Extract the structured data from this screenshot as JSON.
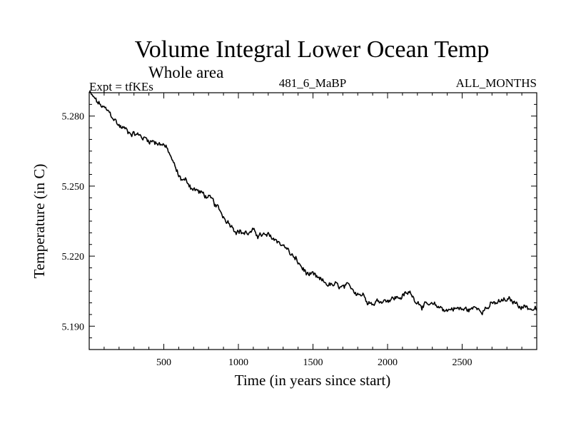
{
  "chart_data": {
    "type": "line",
    "title": "Volume Integral Lower Ocean Temp",
    "subtitle": "Whole area",
    "expt_label": "Expt = tfKEs",
    "center_label": "481_6_MaBP",
    "right_label": "ALL_MONTHS",
    "xlabel": "Time (in years since start)",
    "ylabel": "Temperature (in C)",
    "xlim": [
      0,
      3000
    ],
    "ylim": [
      5.18,
      5.29
    ],
    "x_ticks": [
      500,
      1000,
      1500,
      2000,
      2500
    ],
    "x_tick_labels": [
      "500",
      "1000",
      "1500",
      "2000",
      "2500"
    ],
    "y_ticks": [
      5.19,
      5.22,
      5.25,
      5.28
    ],
    "y_tick_labels": [
      "5.190",
      "5.220",
      "5.250",
      "5.280"
    ],
    "grid": false,
    "line_color": "#000000",
    "series": [
      {
        "x": [
          0,
          50,
          100,
          150,
          200,
          250,
          300,
          350,
          400,
          450,
          500,
          550,
          600,
          650,
          700,
          750,
          800,
          850,
          900,
          950,
          1000,
          1050,
          1100,
          1150,
          1200,
          1250,
          1300,
          1350,
          1400,
          1450,
          1500,
          1550,
          1600,
          1650,
          1700,
          1750,
          1800,
          1850,
          1900,
          1950,
          2000,
          2050,
          2100,
          2150,
          2200,
          2250,
          2300,
          2350,
          2400,
          2450,
          2500,
          2550,
          2600,
          2650,
          2700,
          2750,
          2800,
          2850,
          2900,
          2950,
          3000
        ],
        "y": [
          5.29,
          5.286,
          5.283,
          5.28,
          5.276,
          5.274,
          5.273,
          5.271,
          5.27,
          5.269,
          5.268,
          5.262,
          5.254,
          5.252,
          5.249,
          5.247,
          5.245,
          5.241,
          5.237,
          5.234,
          5.231,
          5.23,
          5.23,
          5.229,
          5.228,
          5.227,
          5.225,
          5.221,
          5.217,
          5.213,
          5.211,
          5.209,
          5.208,
          5.207,
          5.206,
          5.206,
          5.205,
          5.203,
          5.2,
          5.201,
          5.202,
          5.202,
          5.203,
          5.204,
          5.201,
          5.199,
          5.198,
          5.198,
          5.197,
          5.198,
          5.197,
          5.197,
          5.198,
          5.198,
          5.199,
          5.2,
          5.201,
          5.2,
          5.199,
          5.198,
          5.197
        ]
      }
    ]
  }
}
